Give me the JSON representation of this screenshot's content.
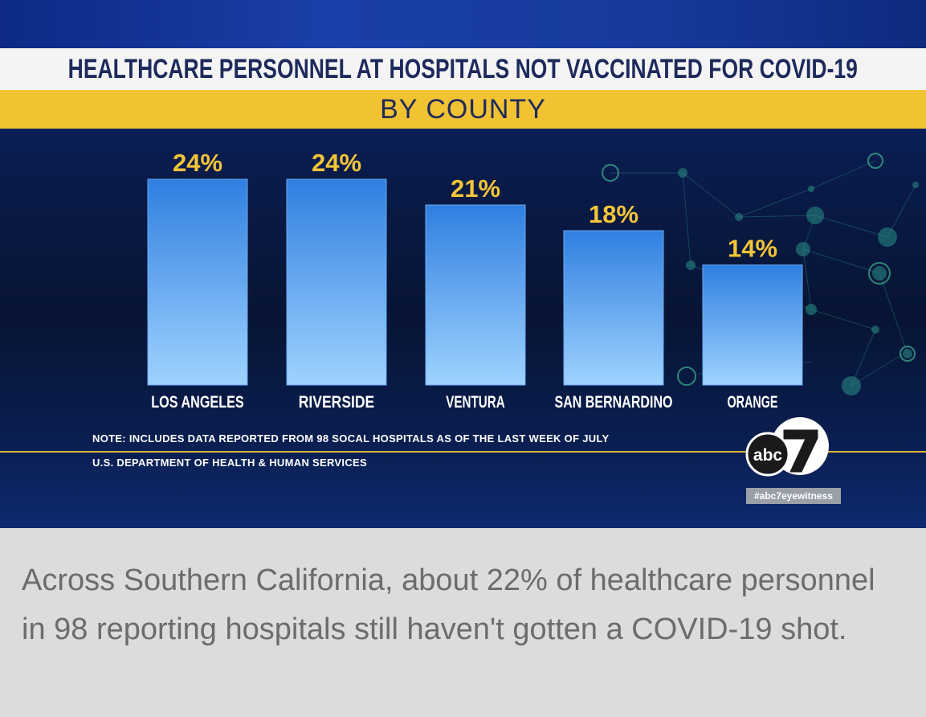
{
  "graphic": {
    "title": "HEALTHCARE PERSONNEL AT HOSPITALS NOT VACCINATED FOR COVID-19",
    "subtitle": "BY COUNTY",
    "note": "NOTE: INCLUDES DATA REPORTED FROM 98 SOCAL HOSPITALS AS OF THE LAST WEEK OF JULY",
    "source": "U.S. DEPARTMENT OF HEALTH & HUMAN SERVICES",
    "logo_text": "abc",
    "logo_number": "7",
    "hashtag": "#abc7eyewitness"
  },
  "chart_data": {
    "type": "bar",
    "title": "HEALTHCARE PERSONNEL AT HOSPITALS NOT VACCINATED FOR COVID-19",
    "subtitle": "BY COUNTY",
    "categories": [
      "LOS ANGELES",
      "RIVERSIDE",
      "VENTURA",
      "SAN BERNARDINO",
      "ORANGE"
    ],
    "values": [
      24,
      24,
      21,
      18,
      14
    ],
    "value_labels": [
      "24%",
      "24%",
      "21%",
      "18%",
      "14%"
    ],
    "unit": "%",
    "ylim": [
      0,
      24
    ],
    "grid": false,
    "legend": "none",
    "colors": {
      "bar_top": "#2f7fe0",
      "bar_bottom": "#9fd3ff",
      "value_label": "#f3c537",
      "category_label": "#ffffff"
    }
  },
  "caption": "Across Southern California, about 22% of healthcare personnel in 98 reporting hospitals still haven't gotten a COVID-19 shot.",
  "colors": {
    "background_navy": "#0a1c4d",
    "title_bar": "#f4f4f4",
    "subtitle_bar": "#f1c232",
    "title_text": "#1e2a5c",
    "caption_text": "#6c6c6c",
    "caption_bg": "#dcdcdc"
  }
}
